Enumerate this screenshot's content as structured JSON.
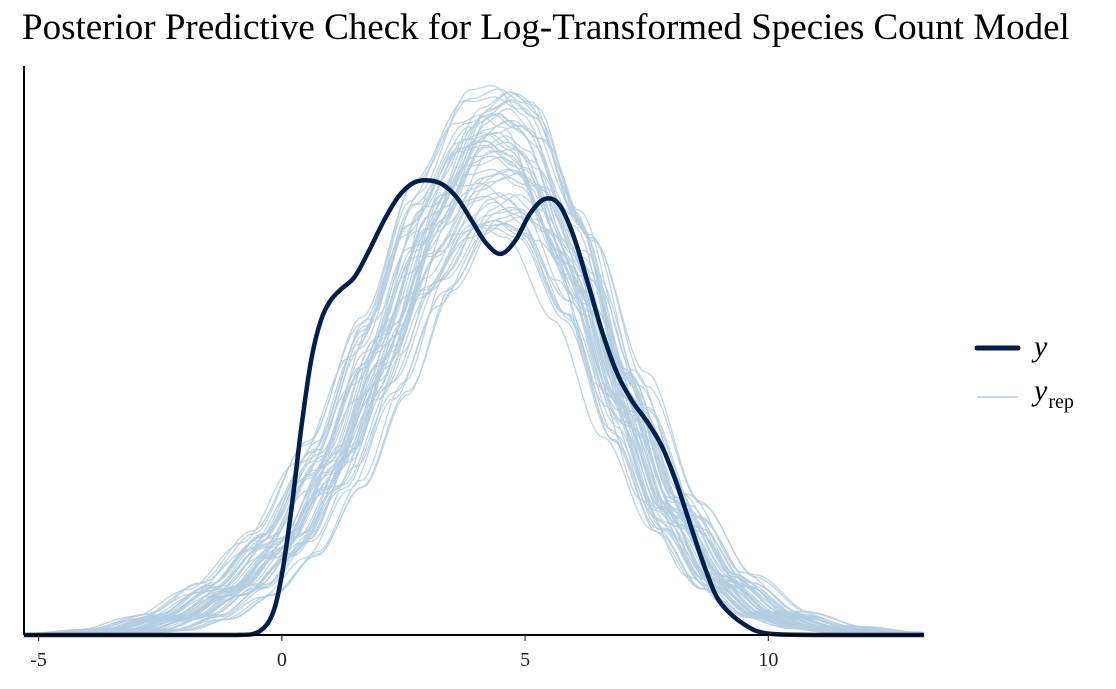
{
  "chart_data": {
    "type": "area",
    "title": "Posterior Predictive Check for Log-Transformed Species Count Model",
    "xlabel": "",
    "ylabel": "",
    "xlim": [
      -5.3,
      13.2
    ],
    "x_ticks": [
      -5,
      0,
      5,
      10
    ],
    "x_tick_labels": [
      "-5",
      "0",
      "5",
      "10"
    ],
    "y_axis_visible": true,
    "y_ticks_visible": false,
    "grid": false,
    "legend_position": "right",
    "colors": {
      "y": "#011f4b",
      "yrep": "#b3cde0"
    },
    "series": [
      {
        "name": "y",
        "legend_label": "y",
        "style": "thick line",
        "x": [
          -5.3,
          -3,
          -1,
          -0.5,
          -0.2,
          0,
          0.2,
          0.4,
          0.6,
          0.8,
          1.0,
          1.2,
          1.5,
          1.8,
          2.1,
          2.4,
          2.7,
          3.0,
          3.3,
          3.6,
          3.9,
          4.2,
          4.5,
          4.8,
          5.1,
          5.4,
          5.7,
          6.0,
          6.3,
          6.6,
          6.9,
          7.2,
          7.5,
          7.8,
          8.1,
          8.4,
          8.7,
          9.0,
          9.5,
          10.0,
          11.0,
          13.2
        ],
        "values": [
          0,
          0,
          0,
          0.002,
          0.015,
          0.045,
          0.095,
          0.155,
          0.205,
          0.235,
          0.25,
          0.258,
          0.268,
          0.288,
          0.31,
          0.328,
          0.338,
          0.34,
          0.337,
          0.327,
          0.31,
          0.293,
          0.285,
          0.295,
          0.315,
          0.326,
          0.322,
          0.298,
          0.262,
          0.225,
          0.195,
          0.175,
          0.16,
          0.142,
          0.115,
          0.082,
          0.05,
          0.025,
          0.008,
          0.001,
          0,
          0
        ]
      },
      {
        "name": "y_rep",
        "legend_label": "y",
        "legend_subscript": "rep",
        "style": "thin lines, 50 draws",
        "draws": 50,
        "x": [
          -5.3,
          -4,
          -3,
          -2,
          -1,
          0,
          1,
          2,
          3,
          4,
          4.5,
          5,
          6,
          7,
          8,
          9,
          10,
          11,
          12,
          13.2
        ],
        "mean": [
          0,
          0.001,
          0.004,
          0.014,
          0.035,
          0.07,
          0.13,
          0.215,
          0.305,
          0.365,
          0.372,
          0.36,
          0.285,
          0.18,
          0.095,
          0.042,
          0.016,
          0.006,
          0.002,
          0
        ]
      }
    ],
    "ylim": [
      0,
      0.43
    ]
  }
}
